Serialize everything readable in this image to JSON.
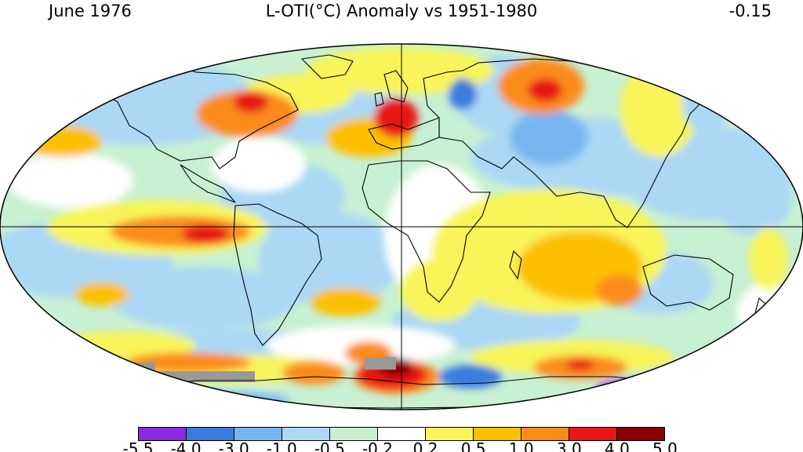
{
  "header": {
    "left": "June 1976",
    "center": "L-OTI(°C) Anomaly vs 1951-1980",
    "right": "-0.15"
  },
  "colorbar": {
    "colors": [
      "#8a2be2",
      "#3a7be0",
      "#78b5f0",
      "#aad8f5",
      "#c8f0d2",
      "#ffffff",
      "#f8f45a",
      "#fcc000",
      "#fb8c1a",
      "#e81818",
      "#8b0000"
    ],
    "labels": [
      "-5.5",
      "-4.0",
      "-3.0",
      "-1.0",
      "-0.5",
      "-0.2",
      "0.2",
      "0.5",
      "1.0",
      "3.0",
      "4.0",
      "5.0"
    ],
    "nodata_color": "#999999"
  },
  "map": {
    "projection": "robinson",
    "ocean_base_color": "#aad8f5",
    "land_fill": "#ffffff"
  }
}
